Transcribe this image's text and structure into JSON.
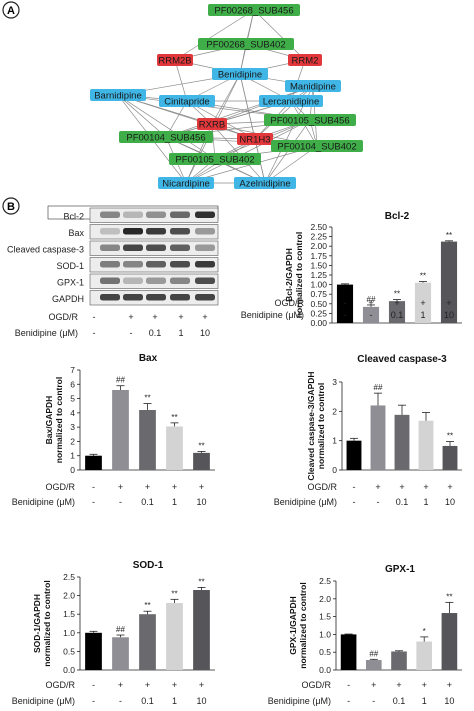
{
  "panels": {
    "a": "A",
    "b": "B"
  },
  "network": {
    "nodes": [
      {
        "id": "n1",
        "label": "PF00268_SUB456",
        "kind": "green"
      },
      {
        "id": "n2",
        "label": "PF00268_SUB402",
        "kind": "green"
      },
      {
        "id": "n3",
        "label": "RRM2B",
        "kind": "red"
      },
      {
        "id": "n4",
        "label": "RRM2",
        "kind": "red"
      },
      {
        "id": "n5",
        "label": "Benidipine",
        "kind": "blue"
      },
      {
        "id": "n6",
        "label": "Barnidipine",
        "kind": "blue"
      },
      {
        "id": "n7",
        "label": "Manidipine",
        "kind": "blue"
      },
      {
        "id": "n8",
        "label": "Cinitapride",
        "kind": "blue"
      },
      {
        "id": "n9",
        "label": "Lercanidipine",
        "kind": "blue"
      },
      {
        "id": "n10",
        "label": "RXRB",
        "kind": "red"
      },
      {
        "id": "n11",
        "label": "NR1H3",
        "kind": "red"
      },
      {
        "id": "n12",
        "label": "PF00105_SUB456",
        "kind": "green"
      },
      {
        "id": "n13",
        "label": "PF00104_SUB456",
        "kind": "green"
      },
      {
        "id": "n14",
        "label": "PF00104_SUB402",
        "kind": "green"
      },
      {
        "id": "n15",
        "label": "PF00105_SUB402",
        "kind": "green"
      },
      {
        "id": "n16",
        "label": "Nicardipine",
        "kind": "blue"
      },
      {
        "id": "n17",
        "label": "Azelnidipine",
        "kind": "blue"
      }
    ],
    "colors": {
      "green": "#3fae49",
      "red": "#e2373b",
      "blue": "#3fb6e6"
    }
  },
  "western_blot": {
    "bands": [
      "Bcl-2",
      "Bax",
      "Cleaved caspase-3",
      "SOD-1",
      "GPX-1",
      "GAPDH"
    ]
  },
  "conditions": {
    "ogd_label": "OGD/R",
    "ogd": [
      "-",
      "+",
      "+",
      "+",
      "+"
    ],
    "drug_label": "Benidipine (μM)",
    "drug": [
      "-",
      "-",
      "0.1",
      "1",
      "10"
    ]
  },
  "chart_data": [
    {
      "type": "bar",
      "title": "Bcl-2",
      "ylabel": "Bcl-2/GAPDH normalized to control",
      "ylim": [
        0,
        2.5
      ],
      "yticks": [
        "0.00",
        "0.25",
        "0.50",
        "0.75",
        "1.00",
        "1.25",
        "1.50",
        "1.75",
        "2.00",
        "2.25",
        "2.50"
      ],
      "values": [
        1.0,
        0.42,
        0.57,
        1.05,
        2.12
      ],
      "errors": [
        0.02,
        0.05,
        0.04,
        0.03,
        0.02
      ],
      "annotations": [
        "",
        "##",
        "**",
        "**",
        "**"
      ]
    },
    {
      "type": "bar",
      "title": "Bax",
      "ylabel": "Bax/GAPDH normalized to control",
      "ylim": [
        0,
        7
      ],
      "yticks": [
        "0",
        "1",
        "2",
        "3",
        "4",
        "5",
        "6",
        "7"
      ],
      "values": [
        1.0,
        5.6,
        4.2,
        3.05,
        1.2
      ],
      "errors": [
        0.1,
        0.3,
        0.45,
        0.25,
        0.1
      ],
      "annotations": [
        "",
        "##",
        "**",
        "**",
        "**"
      ]
    },
    {
      "type": "bar",
      "title": "Cleaved caspase-3",
      "ylabel": "Cleaved caspase-3/GAPDH normalized to control",
      "ylim": [
        0,
        3
      ],
      "yticks": [
        "0",
        "1",
        "2",
        "3"
      ],
      "values": [
        1.0,
        2.2,
        1.88,
        1.68,
        0.82
      ],
      "errors": [
        0.08,
        0.42,
        0.33,
        0.28,
        0.15
      ],
      "annotations": [
        "",
        "##",
        "",
        "",
        "**"
      ]
    },
    {
      "type": "bar",
      "title": "SOD-1",
      "ylabel": "SOD-1/GAPDH normalized to control",
      "ylim": [
        0,
        2.5
      ],
      "yticks": [
        "0.0",
        "0.5",
        "1.0",
        "1.5",
        "2.0",
        "2.5"
      ],
      "values": [
        1.0,
        0.88,
        1.5,
        1.8,
        2.15
      ],
      "errors": [
        0.04,
        0.06,
        0.08,
        0.1,
        0.07
      ],
      "annotations": [
        "",
        "##",
        "**",
        "**",
        "**"
      ]
    },
    {
      "type": "bar",
      "title": "GPX-1",
      "ylabel": "GPX-1/GAPDH normalized to control",
      "ylim": [
        0,
        2.5
      ],
      "yticks": [
        "0.0",
        "0.5",
        "1.0",
        "1.5",
        "2.0",
        "2.5"
      ],
      "values": [
        1.0,
        0.28,
        0.52,
        0.8,
        1.6
      ],
      "errors": [
        0.01,
        0.02,
        0.02,
        0.13,
        0.3
      ],
      "annotations": [
        "",
        "##",
        "",
        "*",
        "**"
      ]
    }
  ],
  "bar_colors": [
    "#000000",
    "#8e8e94",
    "#6a6a6e",
    "#d3d3d3",
    "#56565a"
  ]
}
